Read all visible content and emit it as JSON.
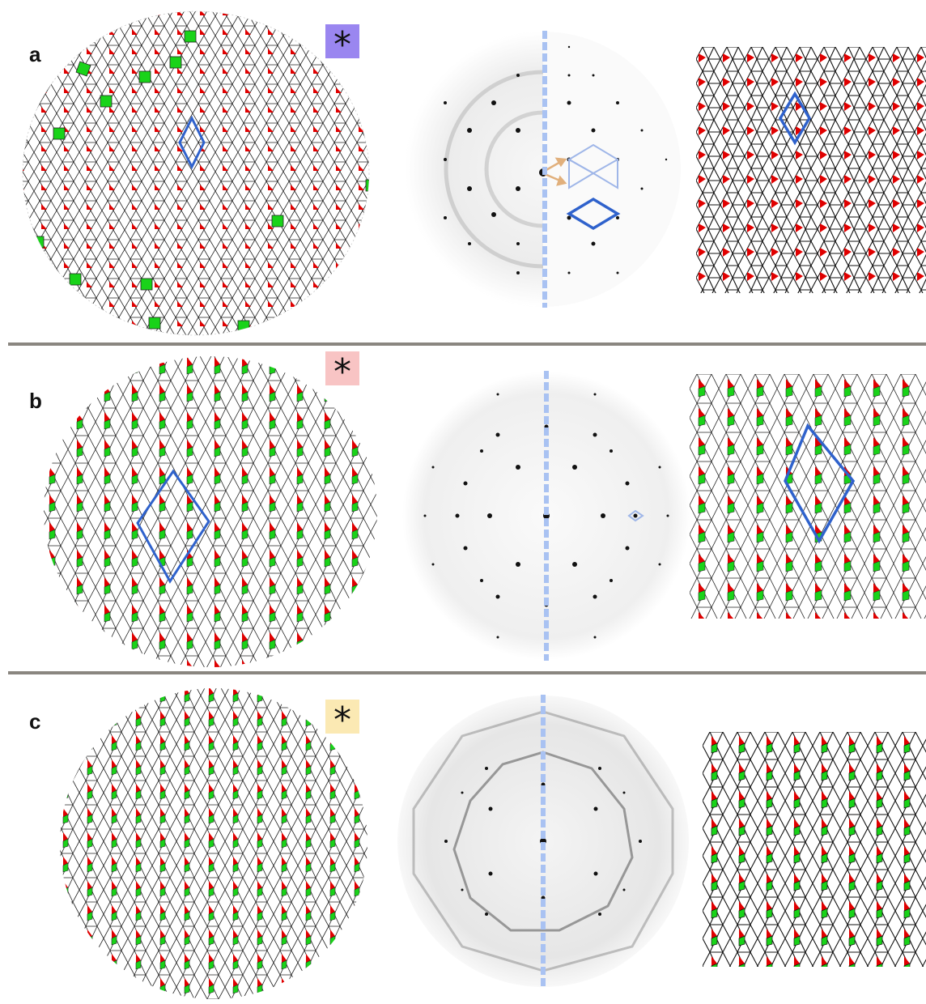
{
  "figure": {
    "panels": [
      {
        "label": "a",
        "marker": "*",
        "marker_color": "#9a86f0"
      },
      {
        "label": "b",
        "marker": "*",
        "marker_color": "#f8c4c4"
      },
      {
        "label": "c",
        "marker": "*",
        "marker_color": "#fbe9b3"
      }
    ],
    "colors": {
      "tile_edge": "#222222",
      "red_tile": "#e00000",
      "green_tile": "#19d319",
      "unit_cell": "#2f62cc",
      "split_line": "#a9c2f2",
      "arrow": "#e1b07c",
      "separator": "#8a8680"
    },
    "icons": [
      "asterisk-marker",
      "unit-cell-rhombus",
      "diffraction-pattern",
      "tiling-pattern"
    ]
  }
}
